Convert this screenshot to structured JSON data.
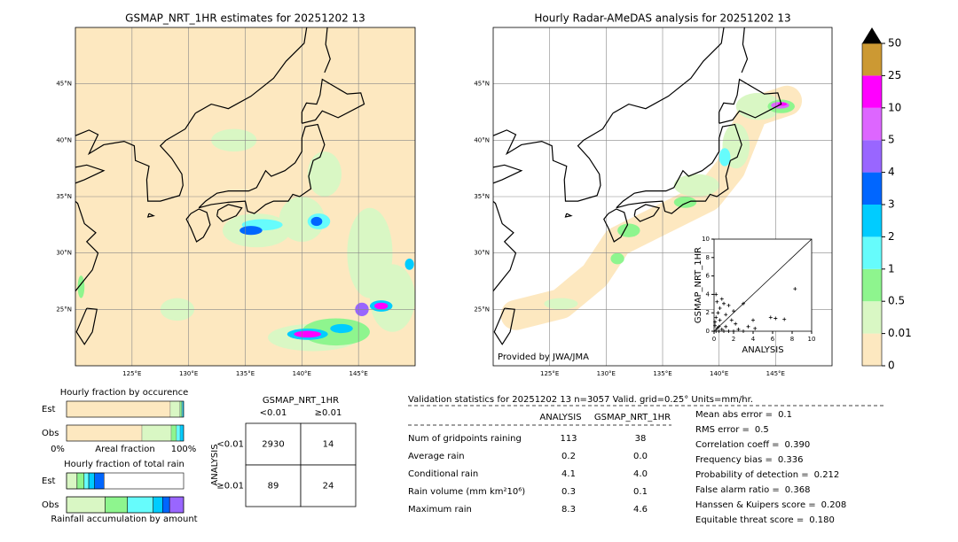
{
  "maps": [
    {
      "title": "GSMAP_NRT_1HR estimates for 20251202 13",
      "xlim": [
        120,
        150
      ],
      "ylim": [
        20,
        50
      ],
      "xticks": [
        {
          "value": 125,
          "label": "125°E"
        },
        {
          "value": 130,
          "label": "130°E"
        },
        {
          "value": 135,
          "label": "135°E"
        },
        {
          "value": 140,
          "label": "140°E"
        },
        {
          "value": 145,
          "label": "145°E"
        }
      ],
      "yticks": [
        {
          "value": 25,
          "label": "25°N"
        },
        {
          "value": 30,
          "label": "30°N"
        },
        {
          "value": 35,
          "label": "35°N"
        },
        {
          "value": 40,
          "label": "40°N"
        },
        {
          "value": 45,
          "label": "45°N"
        }
      ]
    },
    {
      "title": "Hourly Radar-AMeDAS analysis for 20251202 13",
      "xlim": [
        120,
        150
      ],
      "ylim": [
        20,
        50
      ],
      "xticks": [
        {
          "value": 125,
          "label": "125°E"
        },
        {
          "value": 130,
          "label": "130°E"
        },
        {
          "value": 135,
          "label": "135°E"
        },
        {
          "value": 140,
          "label": "140°E"
        },
        {
          "value": 145,
          "label": "145°E"
        }
      ],
      "yticks": [
        {
          "value": 25,
          "label": "25°N"
        },
        {
          "value": 30,
          "label": "30°N"
        },
        {
          "value": 35,
          "label": "35°N"
        },
        {
          "value": 40,
          "label": "40°N"
        },
        {
          "value": 45,
          "label": "45°N"
        }
      ],
      "credit": "Provided by JWA/JMA"
    }
  ],
  "colorbar": {
    "bounds": [
      0,
      0.01,
      0.5,
      1,
      2,
      3,
      4,
      5,
      10,
      25,
      50
    ],
    "colors": [
      "#fde8c0",
      "#d9f7c4",
      "#8ef58e",
      "#66fcfc",
      "#00ccff",
      "#0066ff",
      "#9966ff",
      "#dd66ff",
      "#ff00ff",
      "#cc9933"
    ],
    "over_color": "#000000"
  },
  "chart_data": {
    "type": "scatter",
    "xlabel": "ANALYSIS",
    "ylabel": "GSMAP_NRT_1HR",
    "xlim": [
      0,
      10
    ],
    "ylim": [
      0,
      10
    ],
    "xticks": [
      0,
      2,
      4,
      6,
      8,
      10
    ],
    "yticks": [
      0,
      2,
      4,
      6,
      8,
      10
    ],
    "x": [
      0.2,
      0.5,
      1,
      1.5,
      2,
      3,
      0.3,
      0.5,
      0.8,
      1.2,
      0.1,
      0.2,
      0.4,
      0.6,
      0.3,
      0.8,
      1,
      1.5,
      0.2,
      1.8,
      2.2,
      2.5,
      3.5,
      4,
      4.2,
      5.8,
      6.3,
      7.2,
      8.3,
      3,
      2,
      1.2,
      0.1,
      0.6
    ],
    "y": [
      0,
      0,
      0,
      0,
      0,
      0,
      0.3,
      0.5,
      0.2,
      0.5,
      1,
      1.5,
      2,
      2.5,
      3.2,
      3.5,
      3,
      2.8,
      4,
      1.2,
      0.8,
      0.2,
      0.5,
      1.2,
      0.3,
      1.5,
      1.4,
      1.3,
      4.6,
      3,
      2.2,
      1.8,
      0.6,
      1.2
    ],
    "color": "#000000"
  },
  "occurrence": {
    "title": "Hourly fraction by occurence",
    "axis_labels": [
      "0%",
      "Areal fraction",
      "100%"
    ],
    "rows": [
      {
        "name": "Est",
        "values": [
          88.6,
          8.3,
          1.5,
          0.8,
          0.8
        ]
      },
      {
        "name": "Obs",
        "values": [
          64.4,
          25,
          4.5,
          3.1,
          3
        ]
      }
    ]
  },
  "amount": {
    "title": "Hourly fraction of total rain",
    "xlabel": "Rainfall accumulation by amount",
    "rows": [
      {
        "name": "Est",
        "values": [
          9,
          6,
          4,
          5,
          8
        ]
      },
      {
        "name": "Obs",
        "values": [
          33,
          19,
          22,
          8,
          6,
          12
        ]
      }
    ]
  },
  "contingency": {
    "title": "GSMAP_NRT_1HR",
    "columns": [
      "<0.01",
      "≥0.01"
    ],
    "row_axis": "ANALYSIS",
    "rows": [
      "<0.01",
      "≥0.01"
    ],
    "cells": [
      [
        2930,
        14
      ],
      [
        89,
        24
      ]
    ]
  },
  "validation": {
    "header": "Validation statistics for 20251202 13  n=3057 Valid. grid=0.25° Units=mm/hr.",
    "columns": [
      "ANALYSIS",
      "GSMAP_NRT_1HR"
    ],
    "rows": [
      {
        "label": "Num of gridpoints raining",
        "values": [
          "113",
          "38"
        ]
      },
      {
        "label": "Average rain",
        "values": [
          "0.2",
          "0.0"
        ]
      },
      {
        "label": "Conditional rain",
        "values": [
          "4.1",
          "4.0"
        ]
      },
      {
        "label": "Rain volume (mm km²10⁶)",
        "values": [
          "0.3",
          "0.1"
        ]
      },
      {
        "label": "Maximum rain",
        "values": [
          "8.3",
          "4.6"
        ]
      }
    ],
    "scores": [
      {
        "label": "Mean abs error =",
        "value": "0.1"
      },
      {
        "label": "RMS error =",
        "value": "0.5"
      },
      {
        "label": "Correlation coeff =",
        "value": "0.390"
      },
      {
        "label": "Frequency bias =",
        "value": "0.336"
      },
      {
        "label": "Probability of detection =",
        "value": "0.212"
      },
      {
        "label": "False alarm ratio =",
        "value": "0.368"
      },
      {
        "label": "Hanssen & Kuipers score =",
        "value": "0.208"
      },
      {
        "label": "Equitable threat score =",
        "value": "0.180"
      }
    ]
  }
}
